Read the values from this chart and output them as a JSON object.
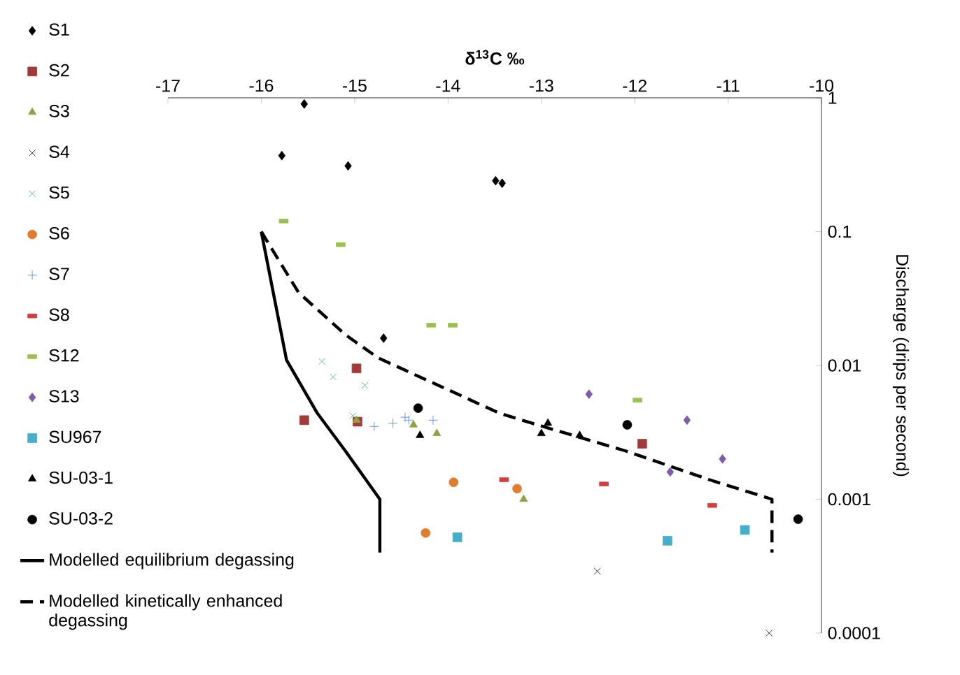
{
  "chart_data": {
    "type": "scatter",
    "xlabel": "δ$^{13}$C ‰",
    "ylabel": "Discharge (drips per second)",
    "xlim": [
      -17,
      -10
    ],
    "xticks": [
      -17,
      -16,
      -15,
      -14,
      -13,
      -12,
      -11,
      -10
    ],
    "ylim": [
      0.0001,
      1
    ],
    "yticks": [
      0.0001,
      0.001,
      0.01,
      0.1,
      1
    ],
    "log": "y",
    "grid": false,
    "legend": "left",
    "series": [
      {
        "name": "S1",
        "color": "#000000",
        "marker": "diamond",
        "x": [
          -15.54,
          -15.78,
          -15.07,
          -13.49,
          -13.42,
          -14.69
        ],
        "values": [
          0.9,
          0.37,
          0.31,
          0.24,
          0.23,
          0.016
        ]
      },
      {
        "name": "S2",
        "color": "#a33a3a",
        "marker": "square",
        "x": [
          -14.98,
          -15.54,
          -14.97,
          -11.92
        ],
        "values": [
          0.0095,
          0.0039,
          0.0038,
          0.0026
        ]
      },
      {
        "name": "S3",
        "color": "#8aa644",
        "marker": "triangle",
        "x": [
          -14.98,
          -14.37,
          -14.12,
          -13.19
        ],
        "values": [
          0.0039,
          0.0036,
          0.0031,
          0.001
        ]
      },
      {
        "name": "S4",
        "color": "#000000",
        "marker": "cross",
        "x": [
          -12.4,
          -10.56
        ],
        "values": [
          0.00029,
          0.0001
        ]
      },
      {
        "name": "S5",
        "color": "#3a9ab0",
        "marker": "cross",
        "x": [
          -15.35,
          -15.23,
          -14.89,
          -15.02
        ],
        "values": [
          0.0107,
          0.0082,
          0.0071,
          0.0042
        ]
      },
      {
        "name": "S6",
        "color": "#e07b30",
        "marker": "circle",
        "x": [
          -13.94,
          -13.26,
          -14.24
        ],
        "values": [
          0.00134,
          0.0012,
          0.00056
        ]
      },
      {
        "name": "S7",
        "color": "#4a7fd0",
        "marker": "plus",
        "x": [
          -14.79,
          -14.59,
          -14.46,
          -14.42,
          -14.16
        ],
        "values": [
          0.0035,
          0.0037,
          0.0041,
          0.0039,
          0.0039
        ]
      },
      {
        "name": "S8",
        "color": "#d04040",
        "x": [
          -13.4,
          -12.33,
          -11.17
        ],
        "values": [
          0.0014,
          0.0013,
          0.0009
        ]
      },
      {
        "name": "S12",
        "color": "#9cc050",
        "x": [
          -15.76,
          -15.15,
          -14.18,
          -13.95,
          -11.97
        ],
        "values": [
          0.12,
          0.08,
          0.02,
          0.02,
          0.0055
        ]
      },
      {
        "name": "S13",
        "color": "#7e5ca8",
        "marker": "diamond",
        "x": [
          -12.49,
          -11.44,
          -11.06,
          -11.62
        ],
        "values": [
          0.0061,
          0.0039,
          0.002,
          0.0016
        ]
      },
      {
        "name": "SU967",
        "color": "#45aecb",
        "marker": "square",
        "x": [
          -13.9,
          -11.65,
          -10.82
        ],
        "values": [
          0.00052,
          0.00049,
          0.00059
        ]
      },
      {
        "name": "SU-03-1",
        "color": "#000000",
        "marker": "triangle",
        "x": [
          -14.3,
          -13.0,
          -12.93,
          -12.59
        ],
        "values": [
          0.003,
          0.0031,
          0.0037,
          0.003
        ]
      },
      {
        "name": "SU-03-2",
        "color": "#000000",
        "marker": "circle",
        "x": [
          -14.32,
          -12.08,
          -10.25
        ],
        "values": [
          0.0048,
          0.0036,
          0.00071
        ]
      },
      {
        "name": "Modelled equilibrium degassing",
        "type": "line",
        "color": "#000000",
        "marker": "none",
        "line_style": "solid",
        "x": [
          -16.0,
          -15.73,
          -15.4,
          -15.1,
          -14.73,
          -14.73
        ],
        "values": [
          0.1,
          0.011,
          0.0044,
          0.0023,
          0.001,
          0.0004
        ]
      },
      {
        "name": "Modelled kinetically enhanced degassing",
        "type": "line",
        "color": "#000000",
        "marker": "none",
        "line_style": "dashed",
        "x": [
          -16.0,
          -15.6,
          -15.1,
          -14.75,
          -13.45,
          -13.1,
          -12.1,
          -11.2,
          -10.53,
          -10.53
        ],
        "values": [
          0.1,
          0.035,
          0.017,
          0.0114,
          0.0044,
          0.0037,
          0.0023,
          0.0014,
          0.001,
          0.0004
        ]
      }
    ]
  }
}
